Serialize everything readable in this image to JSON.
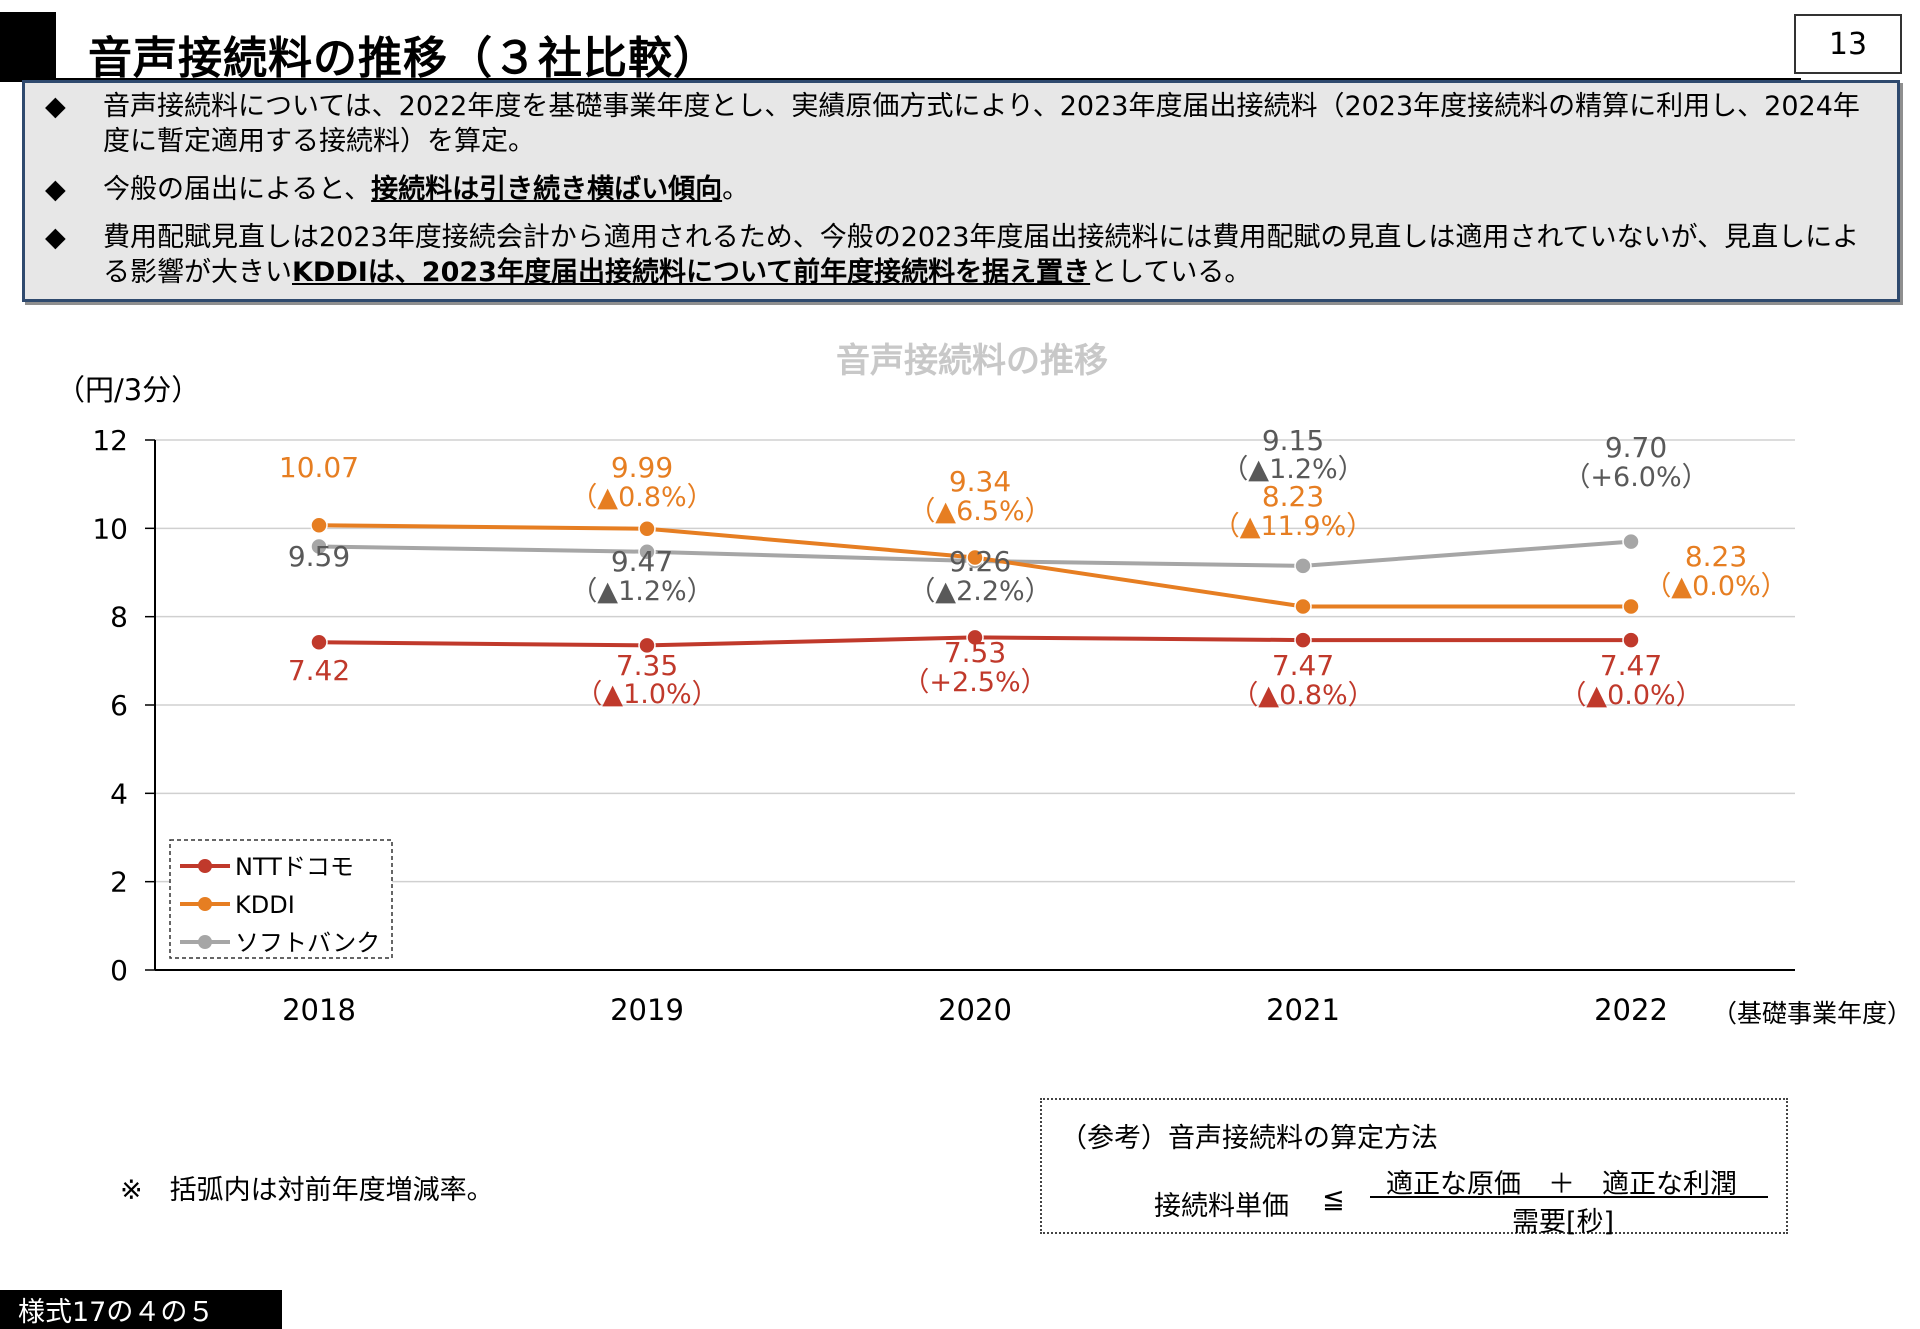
{
  "header": {
    "title": "音声接続料の推移（３社比較）",
    "page_number": "13"
  },
  "summary": {
    "marker": "◆",
    "bullets": [
      {
        "text": "音声接続料については、2022年度を基礎事業年度とし、実績原価方式により、2023年度届出接続料（2023年度接続料の精算に利用し、2024年度に暫定適用する接続料）を算定。"
      },
      {
        "pre": "今般の届出によると、",
        "emph": "接続料は引き続き横ばい傾向",
        "post": "。"
      },
      {
        "pre": "費用配賦見直しは2023年度接続会計から適用されるため、今般の2023年度届出接続料には費用配賦の見直しは適用されていないが、見直しによる影響が大きい",
        "emph": "KDDIは、2023年度届出接続料について前年度接続料を据え置き",
        "post": "としている。"
      }
    ]
  },
  "chart_data": {
    "type": "line",
    "title": "音声接続料の推移",
    "ylabel": "（円/3分）",
    "xlabel": "（基礎事業年度）",
    "categories": [
      "2018",
      "2019",
      "2020",
      "2021",
      "2022"
    ],
    "ylim": [
      0,
      12
    ],
    "yticks": [
      0,
      2,
      4,
      6,
      8,
      10,
      12
    ],
    "grid": true,
    "legend_position": "bottom-left",
    "series": [
      {
        "name": "NTTドコモ",
        "color": "#c0392b",
        "values": [
          7.42,
          7.35,
          7.53,
          7.47,
          7.47
        ],
        "value_labels": [
          "7.42",
          "7.35",
          "7.53",
          "7.47",
          "7.47"
        ],
        "change_labels": [
          "",
          "（▲1.0%）",
          "（+2.5%）",
          "（▲0.8%）",
          "（▲0.0%）"
        ]
      },
      {
        "name": "KDDI",
        "color": "#e67e22",
        "values": [
          10.07,
          9.99,
          9.34,
          8.23,
          8.23
        ],
        "value_labels": [
          "10.07",
          "9.99",
          "9.34",
          "8.23",
          "8.23"
        ],
        "change_labels": [
          "",
          "（▲0.8%）",
          "（▲6.5%）",
          "（▲11.9%）",
          "（▲0.0%）"
        ]
      },
      {
        "name": "ソフトバンク",
        "color": "#a6a6a6",
        "values": [
          9.59,
          9.47,
          9.26,
          9.15,
          9.7
        ],
        "value_labels": [
          "9.59",
          "9.47",
          "9.26",
          "9.15",
          "9.70"
        ],
        "change_labels": [
          "",
          "（▲1.2%）",
          "（▲2.2%）",
          "（▲1.2%）",
          "（+6.0%）"
        ]
      }
    ],
    "label_colors": {
      "NTTドコモ": "#c0392b",
      "KDDI": "#e67e22",
      "ソフトバンク": "#595959"
    }
  },
  "note": "※　括弧内は対前年度増減率。",
  "reference": {
    "title": "（参考）音声接続料の算定方法",
    "lhs": "接続料単価",
    "leq": "≦",
    "numerator": "適正な原価　＋　適正な利潤",
    "denominator": "需要[秒]"
  },
  "footer": {
    "stamp": "様式17の４の５"
  }
}
